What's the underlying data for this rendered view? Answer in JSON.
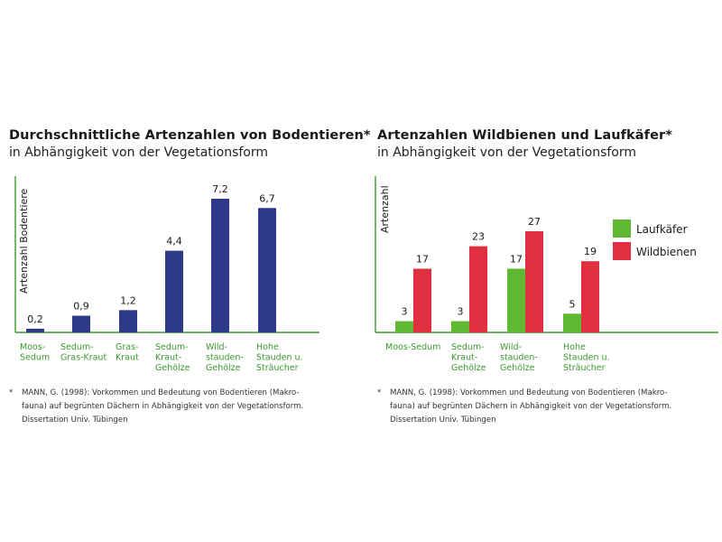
{
  "left": {
    "title": "Durchschnittliche Artenzahlen von Bodentieren*",
    "subtitle": "in Abhängigkeit von der Vegetationsform",
    "footnote_marker": "*",
    "footnote": "MANN, G. (1998): Vorkommen und Bedeutung von Bodentieren (Makro-\nfauna) auf begrünten Dächern in Abhängigkeit von der Vegetationsform.\nDissertation Univ. Tübingen"
  },
  "right": {
    "title": "Artenzahlen Wildbienen und Laufkäfer*",
    "subtitle": "in Abhängigkeit von der Vegetationsform",
    "footnote_marker": "*",
    "footnote": "MANN, G. (1998): Vorkommen und Bedeutung von Bodentieren (Makro-\nfauna) auf begrünten Dächern in Abhängigkeit von der Vegetationsform.\nDissertation Univ. Tübingen"
  },
  "colors": {
    "navy": "#2e3a87",
    "green": "#5fb832",
    "red": "#e0303f",
    "axis": "#3a9a2e",
    "category_text": "#3a9a2e"
  },
  "chart_data": [
    {
      "type": "bar",
      "title": "Durchschnittliche Artenzahlen von Bodentieren*",
      "subtitle": "in Abhängigkeit von der Vegetationsform",
      "ylabel": "Artenzahl Bodentiere",
      "xlabel": "",
      "categories": [
        [
          "Moos-",
          "Sedum"
        ],
        [
          "Sedum-",
          "Gras-Kraut"
        ],
        [
          "Gras-",
          "Kraut"
        ],
        [
          "Sedum-",
          "Kraut-",
          "Gehölze"
        ],
        [
          "Wild-",
          "stauden-",
          "Gehölze"
        ],
        [
          "Hohe",
          "Stauden u.",
          "Sträucher"
        ]
      ],
      "values": [
        0.2,
        0.9,
        1.2,
        4.4,
        7.2,
        6.7
      ],
      "value_labels": [
        "0,2",
        "0,9",
        "1,2",
        "4,4",
        "7,2",
        "6,7"
      ],
      "ylim": [
        0,
        7.8
      ],
      "grid": false,
      "legend": false
    },
    {
      "type": "bar",
      "title": "Artenzahlen Wildbienen und Laufkäfer*",
      "subtitle": "in Abhängigkeit von der Vegetationsform",
      "ylabel": "Artenzahl",
      "xlabel": "",
      "categories": [
        [
          "Moos-Sedum"
        ],
        [
          "Sedum-",
          "Kraut-",
          "Gehölze"
        ],
        [
          "Wild-",
          "stauden-",
          "Gehölze"
        ],
        [
          "Hohe",
          "Stauden u.",
          "Sträucher"
        ]
      ],
      "series": [
        {
          "name": "Laufkäfer",
          "values": [
            3,
            3,
            17,
            5
          ],
          "color": "#5fb832"
        },
        {
          "name": "Wildbienen",
          "values": [
            17,
            23,
            27,
            19
          ],
          "color": "#e0303f"
        }
      ],
      "ylim": [
        0,
        30
      ],
      "grid": false,
      "legend": "top-right"
    }
  ]
}
